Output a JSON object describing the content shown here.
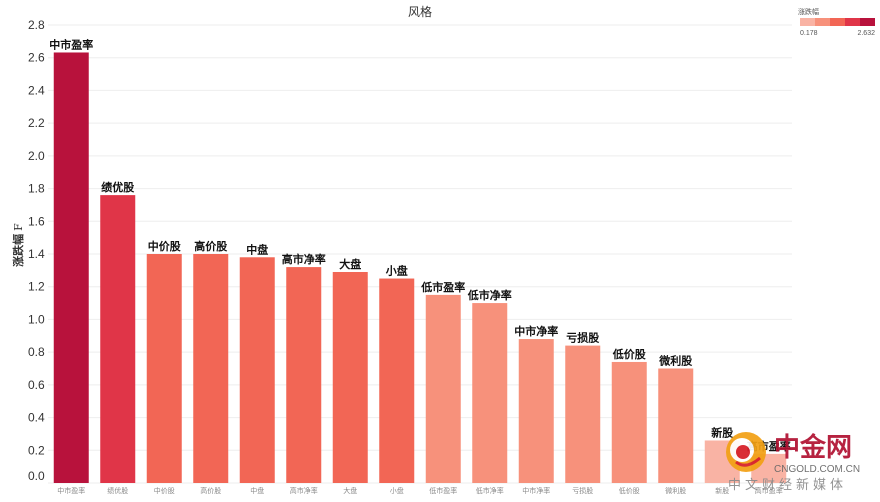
{
  "chart_data": {
    "type": "bar",
    "title": "风格",
    "ylabel": "涨跌幅",
    "ylabel_suffix": "F",
    "ylim": [
      0,
      2.8
    ],
    "yticks": [
      "0.0",
      "0.2",
      "0.4",
      "0.6",
      "0.8",
      "1.0",
      "1.2",
      "1.4",
      "1.6",
      "1.8",
      "2.0",
      "2.2",
      "2.4",
      "2.6",
      "2.8"
    ],
    "categories": [
      "中市盈率",
      "绩优股",
      "中价股",
      "高价股",
      "中盘",
      "高市净率",
      "大盘",
      "小盘",
      "低市盈率",
      "低市净率",
      "中市净率",
      "亏损股",
      "低价股",
      "微利股",
      "新股",
      "高市盈率"
    ],
    "values": [
      2.632,
      1.76,
      1.4,
      1.4,
      1.38,
      1.32,
      1.29,
      1.25,
      1.15,
      1.1,
      0.88,
      0.84,
      0.74,
      0.7,
      0.26,
      0.178
    ],
    "grid": true,
    "legend": {
      "title": "涨跌幅",
      "min_label": "0.178",
      "max_label": "2.632",
      "position": "top-right",
      "colors": [
        "#f9b3a4",
        "#f7917b",
        "#f26655",
        "#e03548",
        "#b8123c"
      ]
    }
  },
  "watermark": {
    "main": "中金网",
    "url": "CNGOLD.COM.CN",
    "sub": "中文财经新媒体"
  }
}
